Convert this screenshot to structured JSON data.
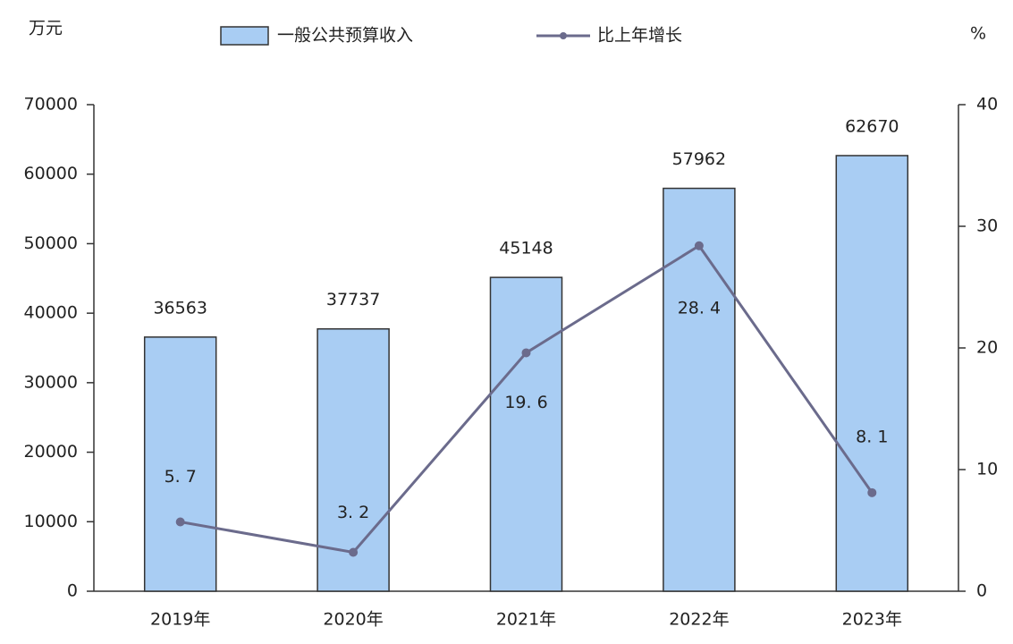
{
  "chart_data": {
    "type": "bar",
    "y_label": "万元",
    "y2_label": "%",
    "categories": [
      "2019年",
      "2020年",
      "2021年",
      "2022年",
      "2023年"
    ],
    "series": [
      {
        "name": "一般公共预算收入",
        "type": "bar",
        "color": "#a9cdf3",
        "values": [
          36563,
          37737,
          45148,
          57962,
          62670
        ]
      },
      {
        "name": "比上年增长",
        "type": "line",
        "axis": "y2",
        "color": "#6b6b8c",
        "values": [
          5.7,
          3.2,
          19.6,
          28.4,
          8.1
        ],
        "value_labels": [
          "5. 7",
          "3. 2",
          "19. 6",
          "28. 4",
          "8. 1"
        ]
      }
    ],
    "ylim": [
      0,
      70000
    ],
    "yticks": [
      0,
      10000,
      20000,
      30000,
      40000,
      50000,
      60000,
      70000
    ],
    "y2lim": [
      0,
      40
    ],
    "y2ticks": [
      0,
      10,
      20,
      30,
      40
    ],
    "grid": false
  }
}
